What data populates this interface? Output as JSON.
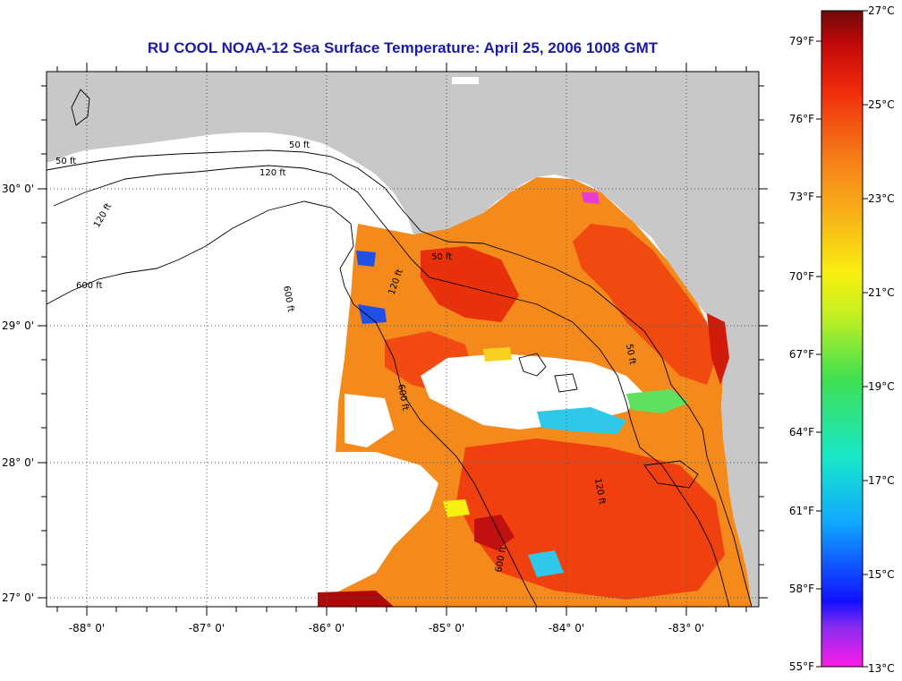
{
  "title": "RU COOL  NOAA-12  Sea Surface Temperature:  April 25, 2006 1008 GMT",
  "axes": {
    "lon_labels": [
      "-88° 0'",
      "-87° 0'",
      "-86° 0'",
      "-85° 0'",
      "-84° 0'",
      "-83° 0'"
    ],
    "lat_labels": [
      "30° 0'",
      "29° 0'",
      "28° 0'",
      "27° 0'"
    ]
  },
  "contour_labels": [
    "50 ft",
    "120 ft",
    "600 ft",
    "50 ft",
    "120 ft",
    "600 ft",
    "120 ft",
    "50 ft",
    "600 ft",
    "120 ft",
    "50 ft",
    "600 ft"
  ],
  "color_scale": {
    "fahrenheit": [
      "79°F",
      "76°F",
      "73°F",
      "70°F",
      "67°F",
      "64°F",
      "61°F",
      "58°F",
      "55°F"
    ],
    "celsius": [
      "27°C",
      "25°C",
      "23°C",
      "21°C",
      "19°C",
      "17°C",
      "15°C",
      "13°C"
    ]
  },
  "colors": {
    "title": "#1b1ba8",
    "land": "#c8c8c8",
    "ocean_nodata": "#ffffff",
    "sst_warm": "#f04a10",
    "sst_mid": "#f58a1c"
  }
}
